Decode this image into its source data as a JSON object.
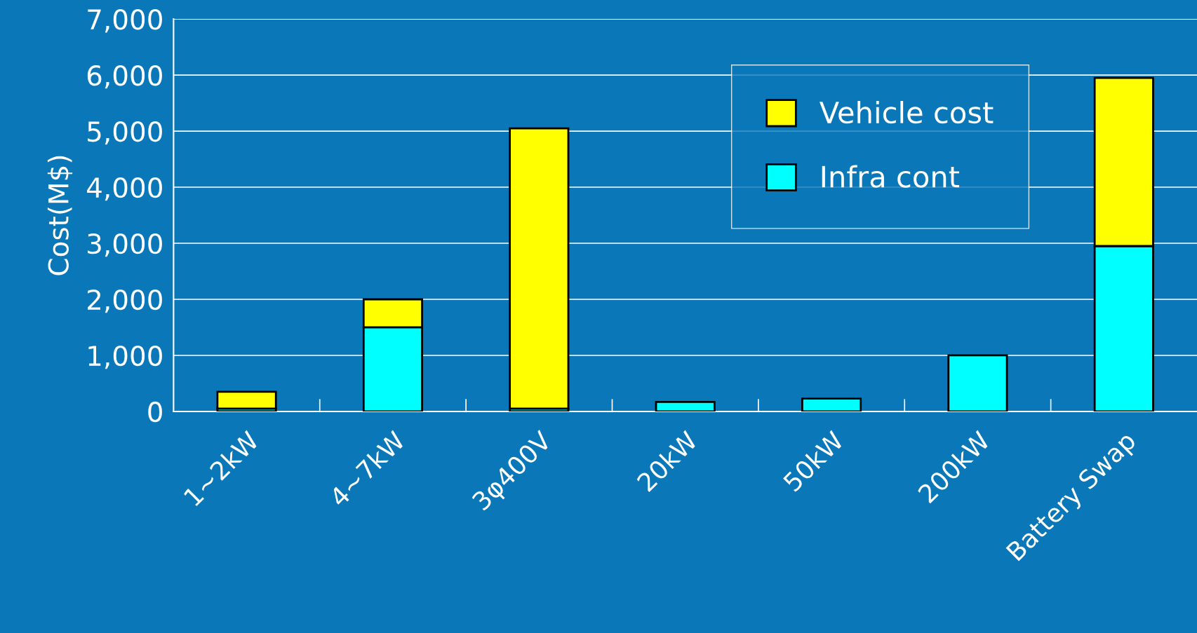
{
  "chart_data": {
    "type": "bar",
    "stacked": true,
    "ylabel": "Cost(M$)",
    "categories": [
      "1~2kW",
      "4~7kW",
      "3φ400V",
      "20kW",
      "50kW",
      "200kW",
      "Battery Swap"
    ],
    "series": [
      {
        "name": "Infra cont",
        "color": "#00ffff",
        "values": [
          50,
          1500,
          50,
          170,
          230,
          1000,
          2950
        ]
      },
      {
        "name": "Vehicle cost",
        "color": "#ffff00",
        "values": [
          300,
          500,
          5000,
          null,
          null,
          null,
          3000
        ]
      }
    ],
    "ylim": [
      0,
      7000
    ],
    "yticks": [
      {
        "value": 0,
        "label": "0"
      },
      {
        "value": 1000,
        "label": "1,000"
      },
      {
        "value": 2000,
        "label": "2,000"
      },
      {
        "value": 3000,
        "label": "3,000"
      },
      {
        "value": 4000,
        "label": "4,000"
      },
      {
        "value": 5000,
        "label": "5,000"
      },
      {
        "value": 6000,
        "label": "6,000"
      },
      {
        "value": 7000,
        "label": "7,000"
      }
    ],
    "grid": "y",
    "legend": "top right"
  }
}
